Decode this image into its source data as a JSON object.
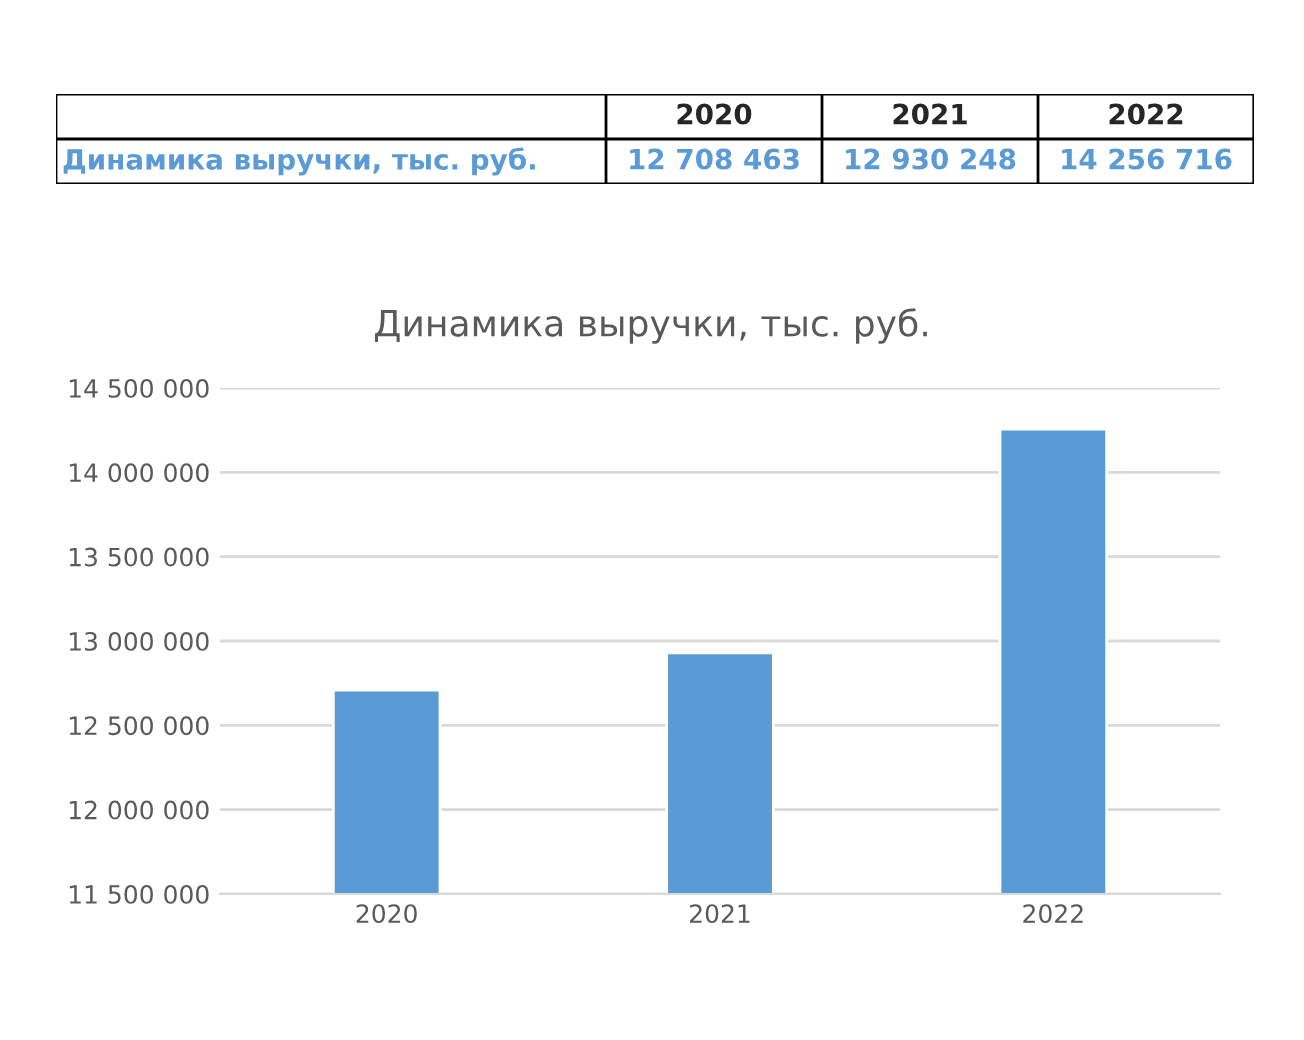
{
  "chart_data": {
    "type": "bar",
    "title": "Динамика выручки, тыс. руб.",
    "categories": [
      "2020",
      "2021",
      "2022"
    ],
    "values": [
      12708463,
      12930248,
      14256716
    ],
    "annotations": [
      "Динамика выручки, тыс. руб.",
      "12 708 463",
      "12 930 248",
      "14 256 716"
    ],
    "color": "#5b9bd5",
    "ylim": [
      11500000,
      14500000
    ],
    "yticks": [
      {
        "value": 11500000,
        "label": "11 500 000"
      },
      {
        "value": 12000000,
        "label": "12 000 000"
      },
      {
        "value": 12500000,
        "label": "12 500 000"
      },
      {
        "value": 13000000,
        "label": "13 000 000"
      },
      {
        "value": 13500000,
        "label": "13 500 000"
      },
      {
        "value": 14000000,
        "label": "14 000 000"
      },
      {
        "value": 14500000,
        "label": "14 500 000"
      }
    ],
    "grid": "y"
  }
}
